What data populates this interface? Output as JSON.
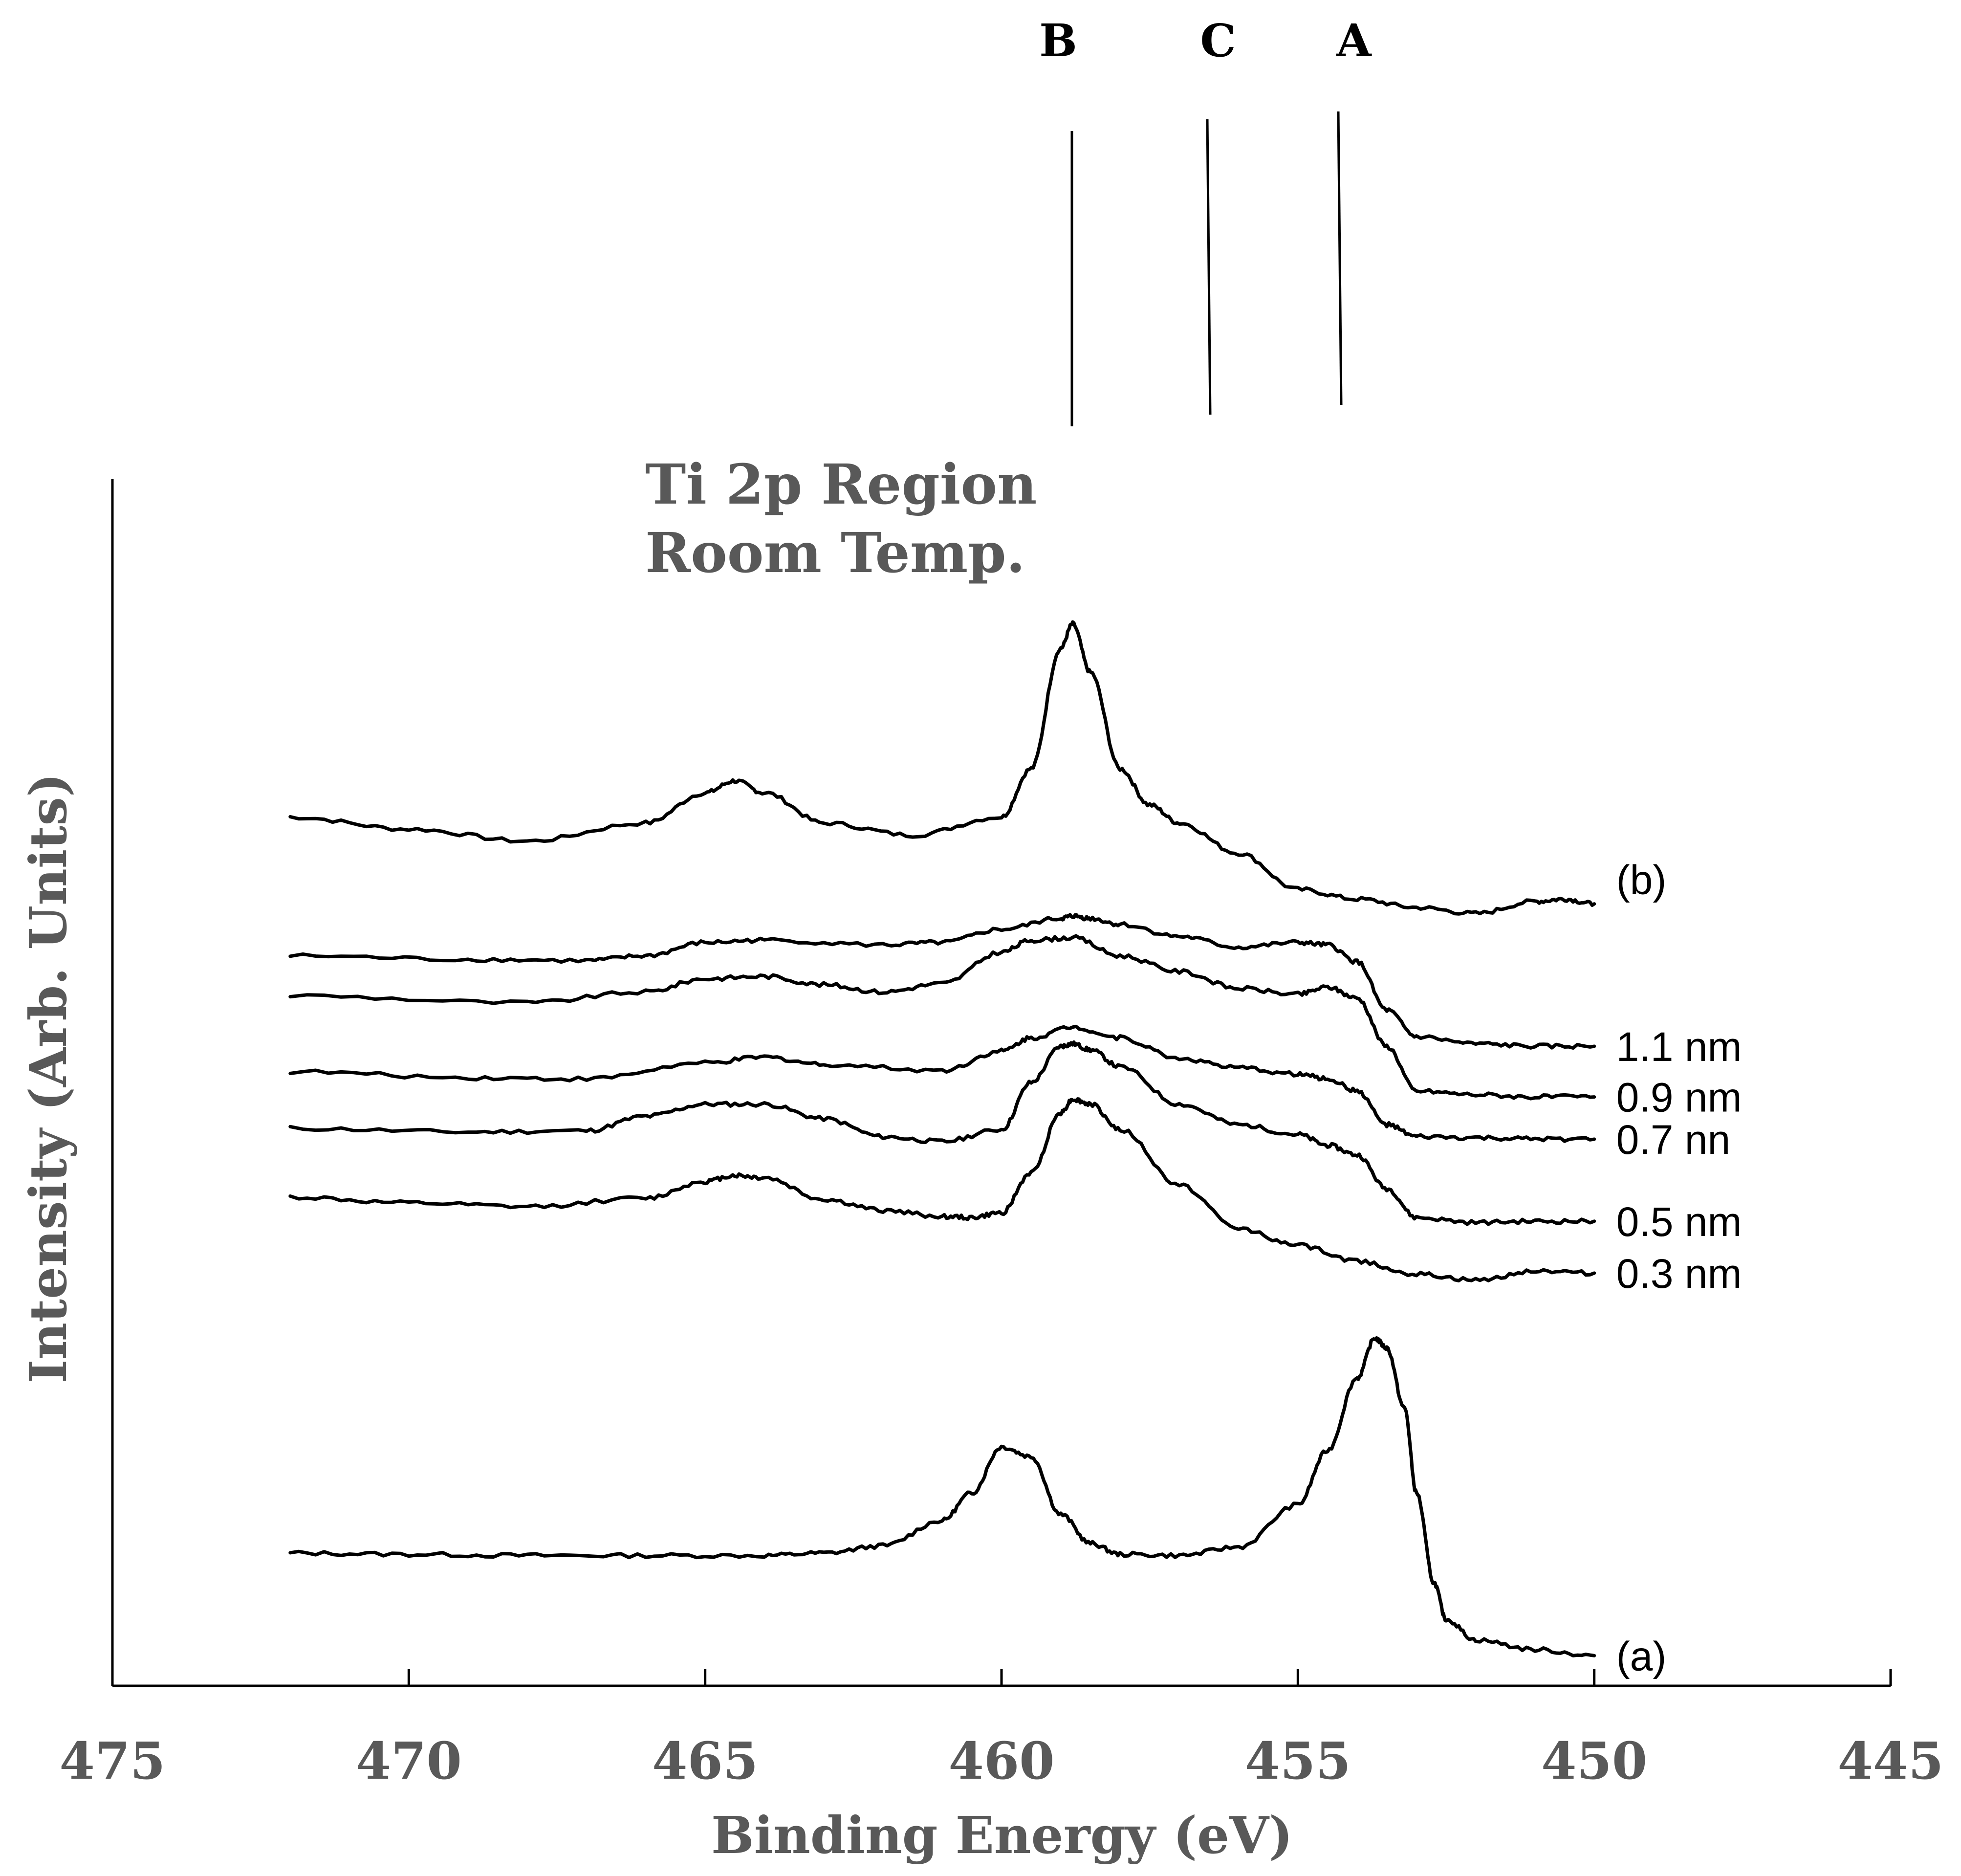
{
  "chart_data": {
    "type": "line",
    "title": [
      "Ti 2p Region",
      "Room Temp."
    ],
    "xlabel": "Binding Energy (eV)",
    "ylabel": "Intensity (Arb. Units)",
    "xlim": [
      475,
      445
    ],
    "x_reversed": true,
    "ylim": [
      0,
      100
    ],
    "grid": false,
    "x_ticks": [
      475,
      470,
      465,
      460,
      455,
      450,
      445
    ],
    "x_tick_labels": [
      "475",
      "470",
      "465",
      "460",
      "455",
      "450",
      "445"
    ],
    "reference_lines": [
      {
        "label": "B",
        "x": 458.8
      },
      {
        "label": "C",
        "x": 456.5
      },
      {
        "label": "A",
        "x": 454.4
      }
    ],
    "series": [
      {
        "name": "(b)",
        "label": "(b)",
        "x": [
          472,
          470,
          468,
          466,
          465,
          464.5,
          464,
          463,
          461.5,
          460,
          459.5,
          459,
          458.8,
          458.5,
          458,
          457.5,
          457,
          456,
          455,
          454,
          453,
          452,
          451,
          450.5,
          450
        ],
        "values": [
          72,
          71,
          70,
          71.5,
          74,
          75,
          74,
          71.5,
          70.5,
          72,
          76,
          86,
          88,
          84,
          76,
          73,
          71.5,
          69,
          66,
          65.2,
          64.5,
          64,
          65,
          65.2,
          64.8
        ]
      },
      {
        "name": "1.1 nm",
        "label": "1.1 nm",
        "x": [
          472,
          469,
          467,
          466,
          465,
          464,
          462,
          461,
          460,
          459,
          458.8,
          458.5,
          458,
          457,
          456,
          455,
          454.5,
          454,
          453.5,
          453,
          452,
          451,
          450
        ],
        "values": [
          60.5,
          60.2,
          60.1,
          60.5,
          61.6,
          61.8,
          61.4,
          61.6,
          62.7,
          63.6,
          63.8,
          63.6,
          63.1,
          62.1,
          61.2,
          61.6,
          61.4,
          60,
          56,
          53.8,
          53.2,
          53,
          53
        ]
      },
      {
        "name": "0.9 nm",
        "label": "0.9 nm",
        "x": [
          472,
          468,
          466,
          465,
          464,
          463,
          462,
          461,
          460,
          459.5,
          458.8,
          458,
          457,
          456,
          455,
          454.5,
          454,
          453.5,
          453,
          452,
          451,
          450
        ],
        "values": [
          57.2,
          56.6,
          57.5,
          58.6,
          58.8,
          58.1,
          57.5,
          58.2,
          60.8,
          61.8,
          62,
          60.5,
          59.2,
          57.8,
          57.3,
          57.9,
          57,
          53,
          49.3,
          49,
          48.8,
          48.8
        ]
      },
      {
        "name": "0.7 nn",
        "label": "0.7 nn",
        "x": [
          472,
          469,
          467,
          465,
          464,
          463,
          461,
          460,
          459.5,
          458.8,
          458,
          457,
          456,
          455,
          454.5,
          454,
          453.5,
          453,
          452,
          451,
          450
        ],
        "values": [
          50.9,
          50.4,
          50.3,
          51.6,
          52.1,
          51.5,
          51,
          52.6,
          53.7,
          54.6,
          53.7,
          52,
          51.2,
          50.7,
          50.3,
          49.3,
          46.5,
          45.5,
          45.4,
          45.3,
          45.3
        ]
      },
      {
        "name": "0.5 nm",
        "label": "0.5 nm",
        "x": [
          472,
          469,
          467,
          466,
          465,
          464,
          463,
          462,
          461,
          460,
          459.5,
          459,
          458.8,
          458.5,
          458,
          457,
          456,
          455,
          454.5,
          454,
          453.5,
          453,
          452,
          451,
          450
        ],
        "values": [
          46.2,
          45.9,
          46,
          47.2,
          48.2,
          48.2,
          47,
          45.5,
          45.1,
          46.1,
          50,
          53,
          53.2,
          52.7,
          51.3,
          48.2,
          46.5,
          45.7,
          44.8,
          44,
          41.2,
          38.8,
          38.4,
          38.5,
          38.5
        ]
      },
      {
        "name": "0.3 nm",
        "label": "0.3 nm",
        "x": [
          472,
          470,
          468,
          466,
          465,
          464.5,
          464,
          463,
          462,
          461,
          460.5,
          460,
          459.5,
          459,
          458.8,
          458.5,
          458,
          457,
          456,
          455,
          454,
          453,
          452,
          451,
          450
        ],
        "values": [
          40.5,
          40,
          39.7,
          40.4,
          41.8,
          42.3,
          42.1,
          40.3,
          39.4,
          38.9,
          38.8,
          39.2,
          42.5,
          47.5,
          48.6,
          48.2,
          46.1,
          41.5,
          37.9,
          36.5,
          35.2,
          34.1,
          33.6,
          34.4,
          34.2
        ]
      },
      {
        "name": "(a)",
        "label": "(a)",
        "x": [
          472,
          470,
          468,
          466,
          464,
          463,
          462,
          461,
          460.5,
          460,
          459.5,
          459,
          458.5,
          458,
          457,
          456,
          455,
          454.5,
          454,
          453.7,
          453.5,
          453.2,
          453,
          452.7,
          452.5,
          452,
          451,
          450
        ],
        "values": [
          11,
          10.9,
          10.8,
          10.8,
          10.8,
          11,
          11.6,
          13.7,
          16,
          19.8,
          19,
          14.2,
          11.8,
          10.9,
          10.8,
          11.5,
          15,
          19.5,
          25.5,
          28.8,
          28,
          23,
          16,
          8.5,
          5.5,
          3.8,
          3,
          2.5
        ]
      }
    ]
  }
}
